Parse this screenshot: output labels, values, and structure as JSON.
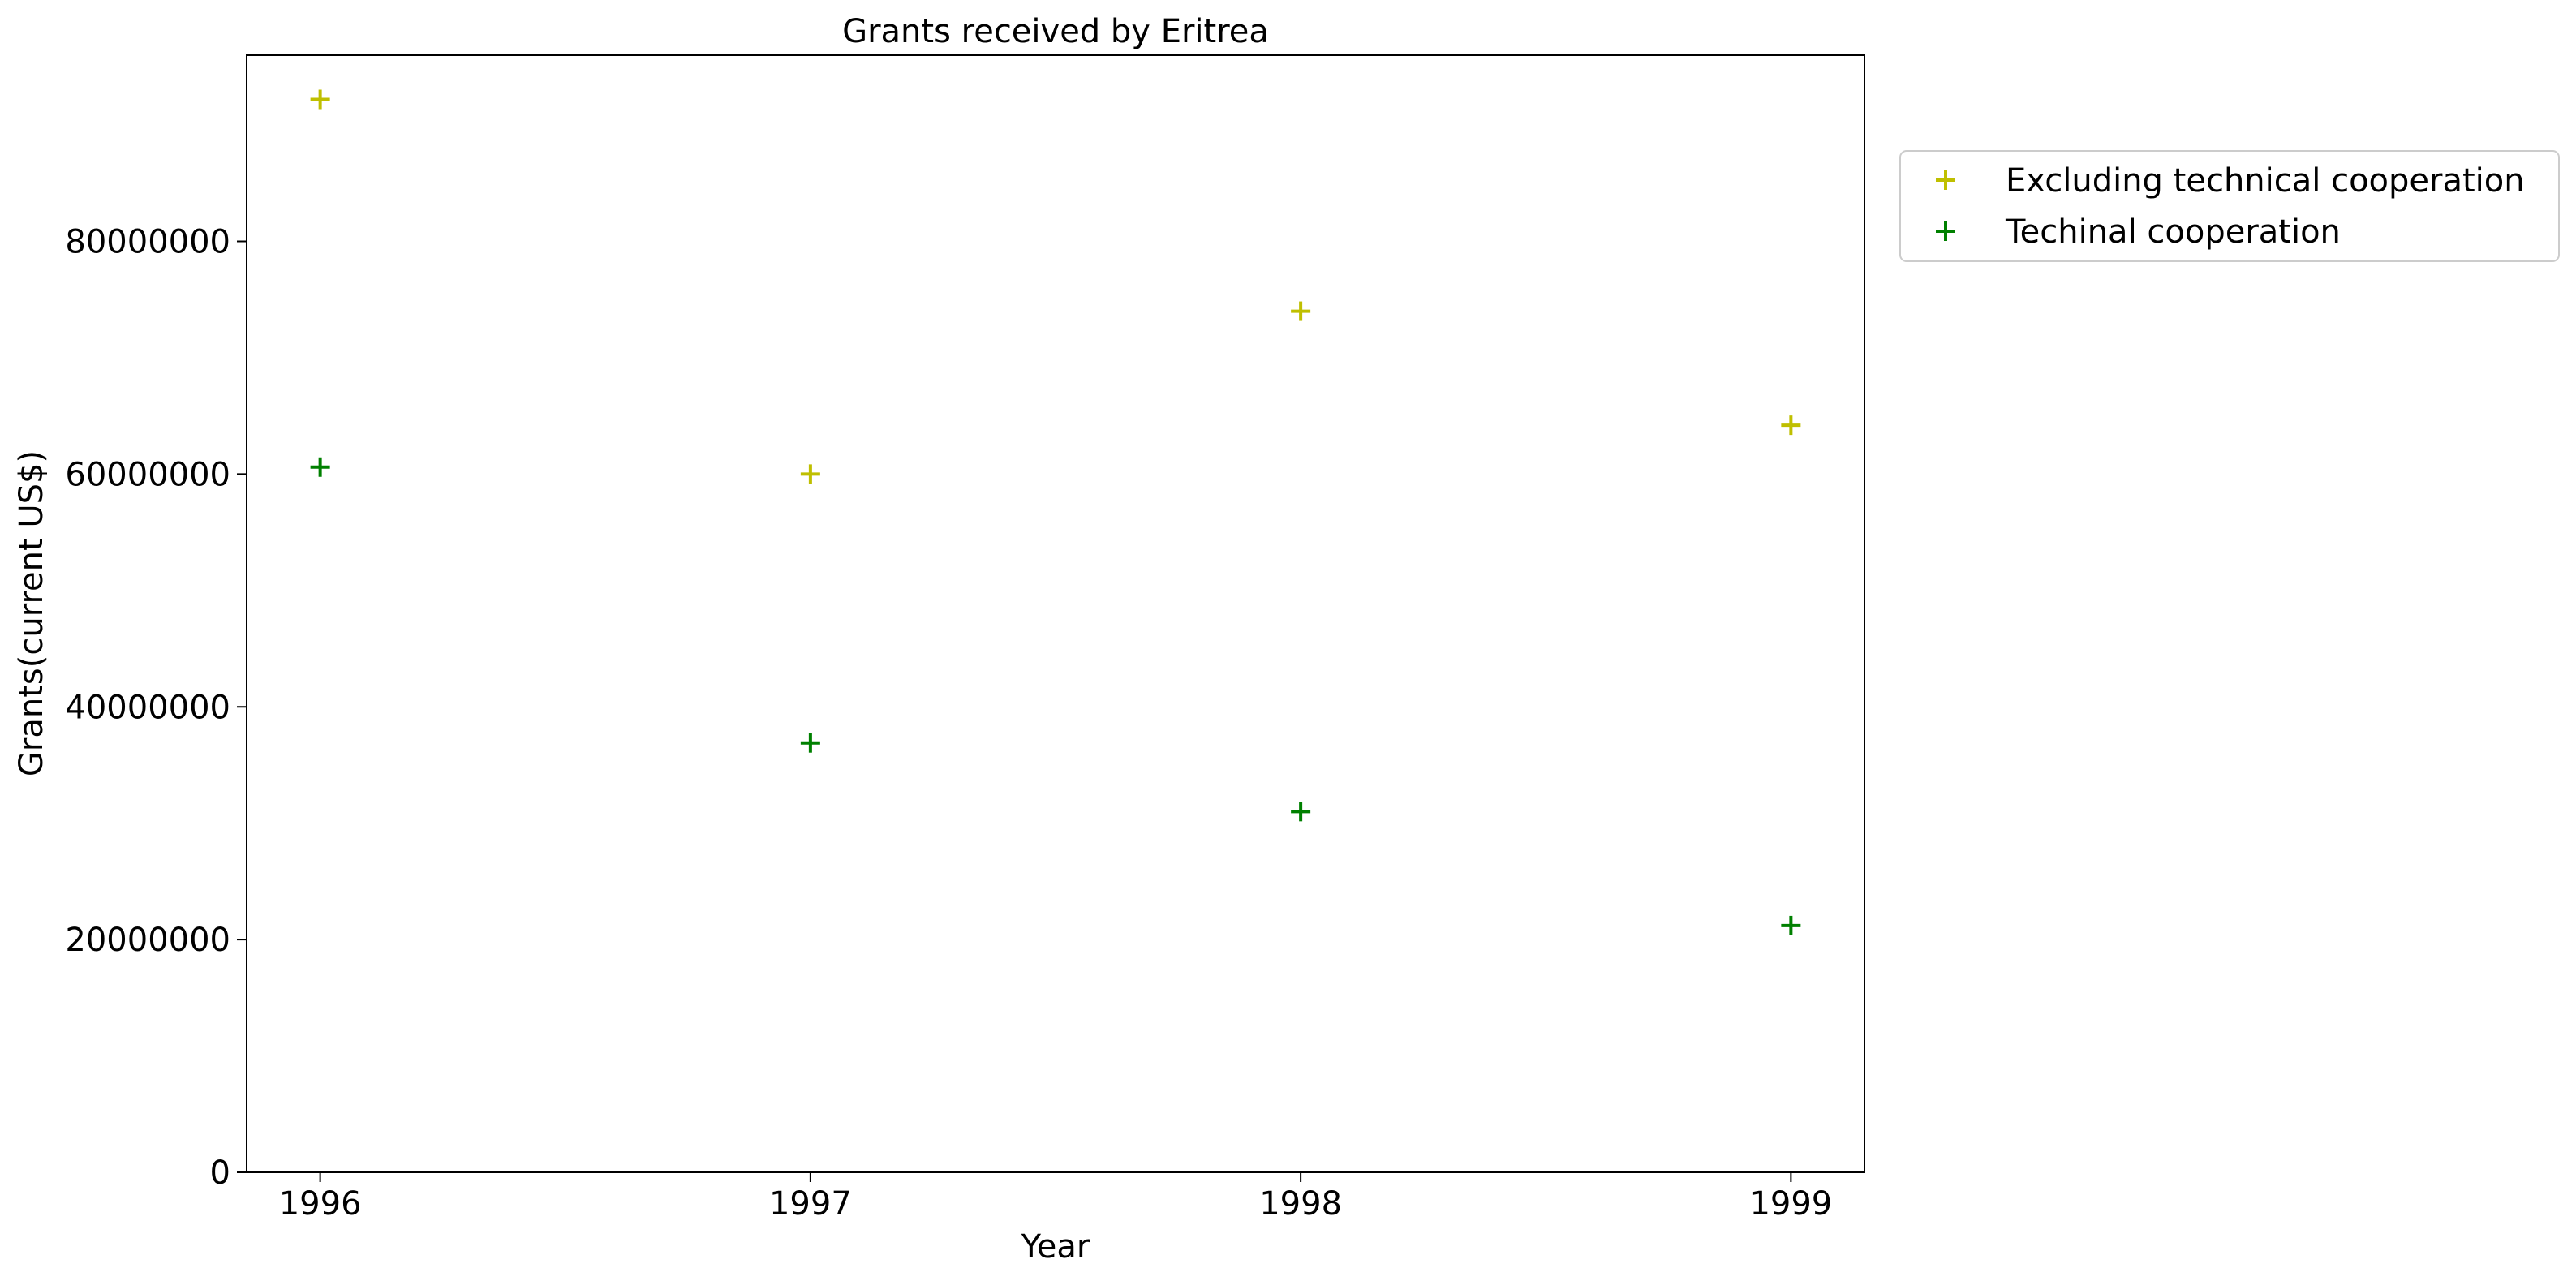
{
  "chart_data": {
    "type": "scatter",
    "title": "Grants received by Eritrea",
    "xlabel": "Year",
    "ylabel": "Grants(current US$)",
    "x": [
      1996,
      1997,
      1998,
      1999
    ],
    "xticks": [
      "1996",
      "1997",
      "1998",
      "1999"
    ],
    "yticks": [
      "0",
      "20000000",
      "40000000",
      "60000000",
      "80000000"
    ],
    "ylim": [
      0,
      96000000
    ],
    "series": [
      {
        "name": "Excluding technical cooperation",
        "color": "#bfbf00",
        "values": [
          92200000,
          60000000,
          74000000,
          64200000
        ]
      },
      {
        "name": "Techinal cooperation",
        "color": "#008000",
        "values": [
          60600000,
          36900000,
          31000000,
          21200000
        ]
      }
    ],
    "marker": "plus",
    "grid": false,
    "legend_position": "outside-right"
  }
}
